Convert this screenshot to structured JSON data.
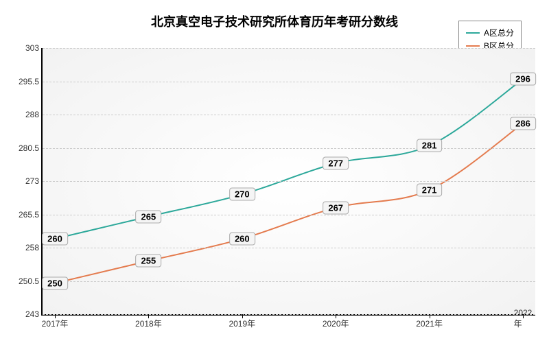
{
  "chart": {
    "type": "line",
    "title": "北京真空电子技术研究所体育历年考研分数线",
    "title_fontsize": 18,
    "background_color": "#ffffff",
    "plot_bg_gradient": [
      "#f2f2f2",
      "#ffffff"
    ],
    "grid_color": "#cccccc",
    "axis_color": "#000000",
    "label_fontsize": 12,
    "datalabel_fontsize": 13,
    "ylim": [
      243,
      303
    ],
    "yticks": [
      243,
      250.5,
      258,
      265.5,
      273,
      280.5,
      288,
      295.5,
      303
    ],
    "x_categories": [
      "2017年",
      "2018年",
      "2019年",
      "2020年",
      "2021年",
      "2022年"
    ],
    "legend": {
      "position": "top-right",
      "border_color": "#888888",
      "bg_color": "#ffffff"
    },
    "series": [
      {
        "name": "A区总分",
        "color": "#2ca89a",
        "line_width": 2,
        "values": [
          260,
          265,
          270,
          277,
          281,
          296
        ]
      },
      {
        "name": "B区总分",
        "color": "#e47b4e",
        "line_width": 2,
        "values": [
          250,
          255,
          260,
          267,
          271,
          286
        ]
      }
    ]
  }
}
